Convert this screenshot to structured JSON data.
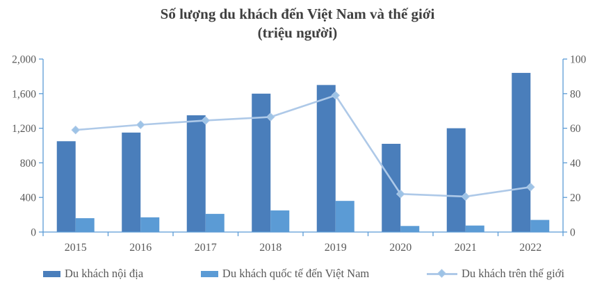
{
  "title": {
    "line1": "Số lượng du khách đến Việt Nam và thế giới",
    "line2": "(triệu người)"
  },
  "colors": {
    "axis_line": "#5B9BD5",
    "tick_text": "#595959",
    "title_text": "#3F3F3F",
    "background": "#FFFFFF"
  },
  "chart_data": {
    "type": "combo-bar-line",
    "title": "Số lượng du khách đến Việt Nam và thế giới (triệu người)",
    "xlabel": "",
    "ylabel": "",
    "grid": false,
    "legend_position": "bottom",
    "categories": [
      "2015",
      "2016",
      "2017",
      "2018",
      "2019",
      "2020",
      "2021",
      "2022"
    ],
    "series": [
      {
        "key": "domestic",
        "name": "Du khách nội địa",
        "type": "bar",
        "axis": "left",
        "color": "#4A7EBB",
        "values": [
          1050,
          1150,
          1350,
          1600,
          1700,
          1020,
          1200,
          1840
        ]
      },
      {
        "key": "international",
        "name": "Du khách quốc tế đến Việt Nam",
        "type": "bar",
        "axis": "left",
        "color": "#5B9BD5",
        "values": [
          160,
          170,
          210,
          250,
          360,
          70,
          75,
          140
        ]
      },
      {
        "key": "world",
        "name": "Du khách trên thế giới",
        "type": "line",
        "axis": "right",
        "color": "#AEC9E8",
        "marker": "diamond",
        "marker_color": "#9DC3E6",
        "values": [
          59,
          62,
          64.5,
          66.5,
          79,
          22,
          20.5,
          26
        ]
      }
    ],
    "left_axis": {
      "min": 0,
      "max": 2000,
      "step": 400,
      "tick_labels": [
        "0",
        "400",
        "800",
        "1,200",
        "1,600",
        "2,000"
      ]
    },
    "right_axis": {
      "min": 0,
      "max": 100,
      "step": 20,
      "tick_labels": [
        "0",
        "20",
        "40",
        "60",
        "80",
        "100"
      ]
    }
  }
}
